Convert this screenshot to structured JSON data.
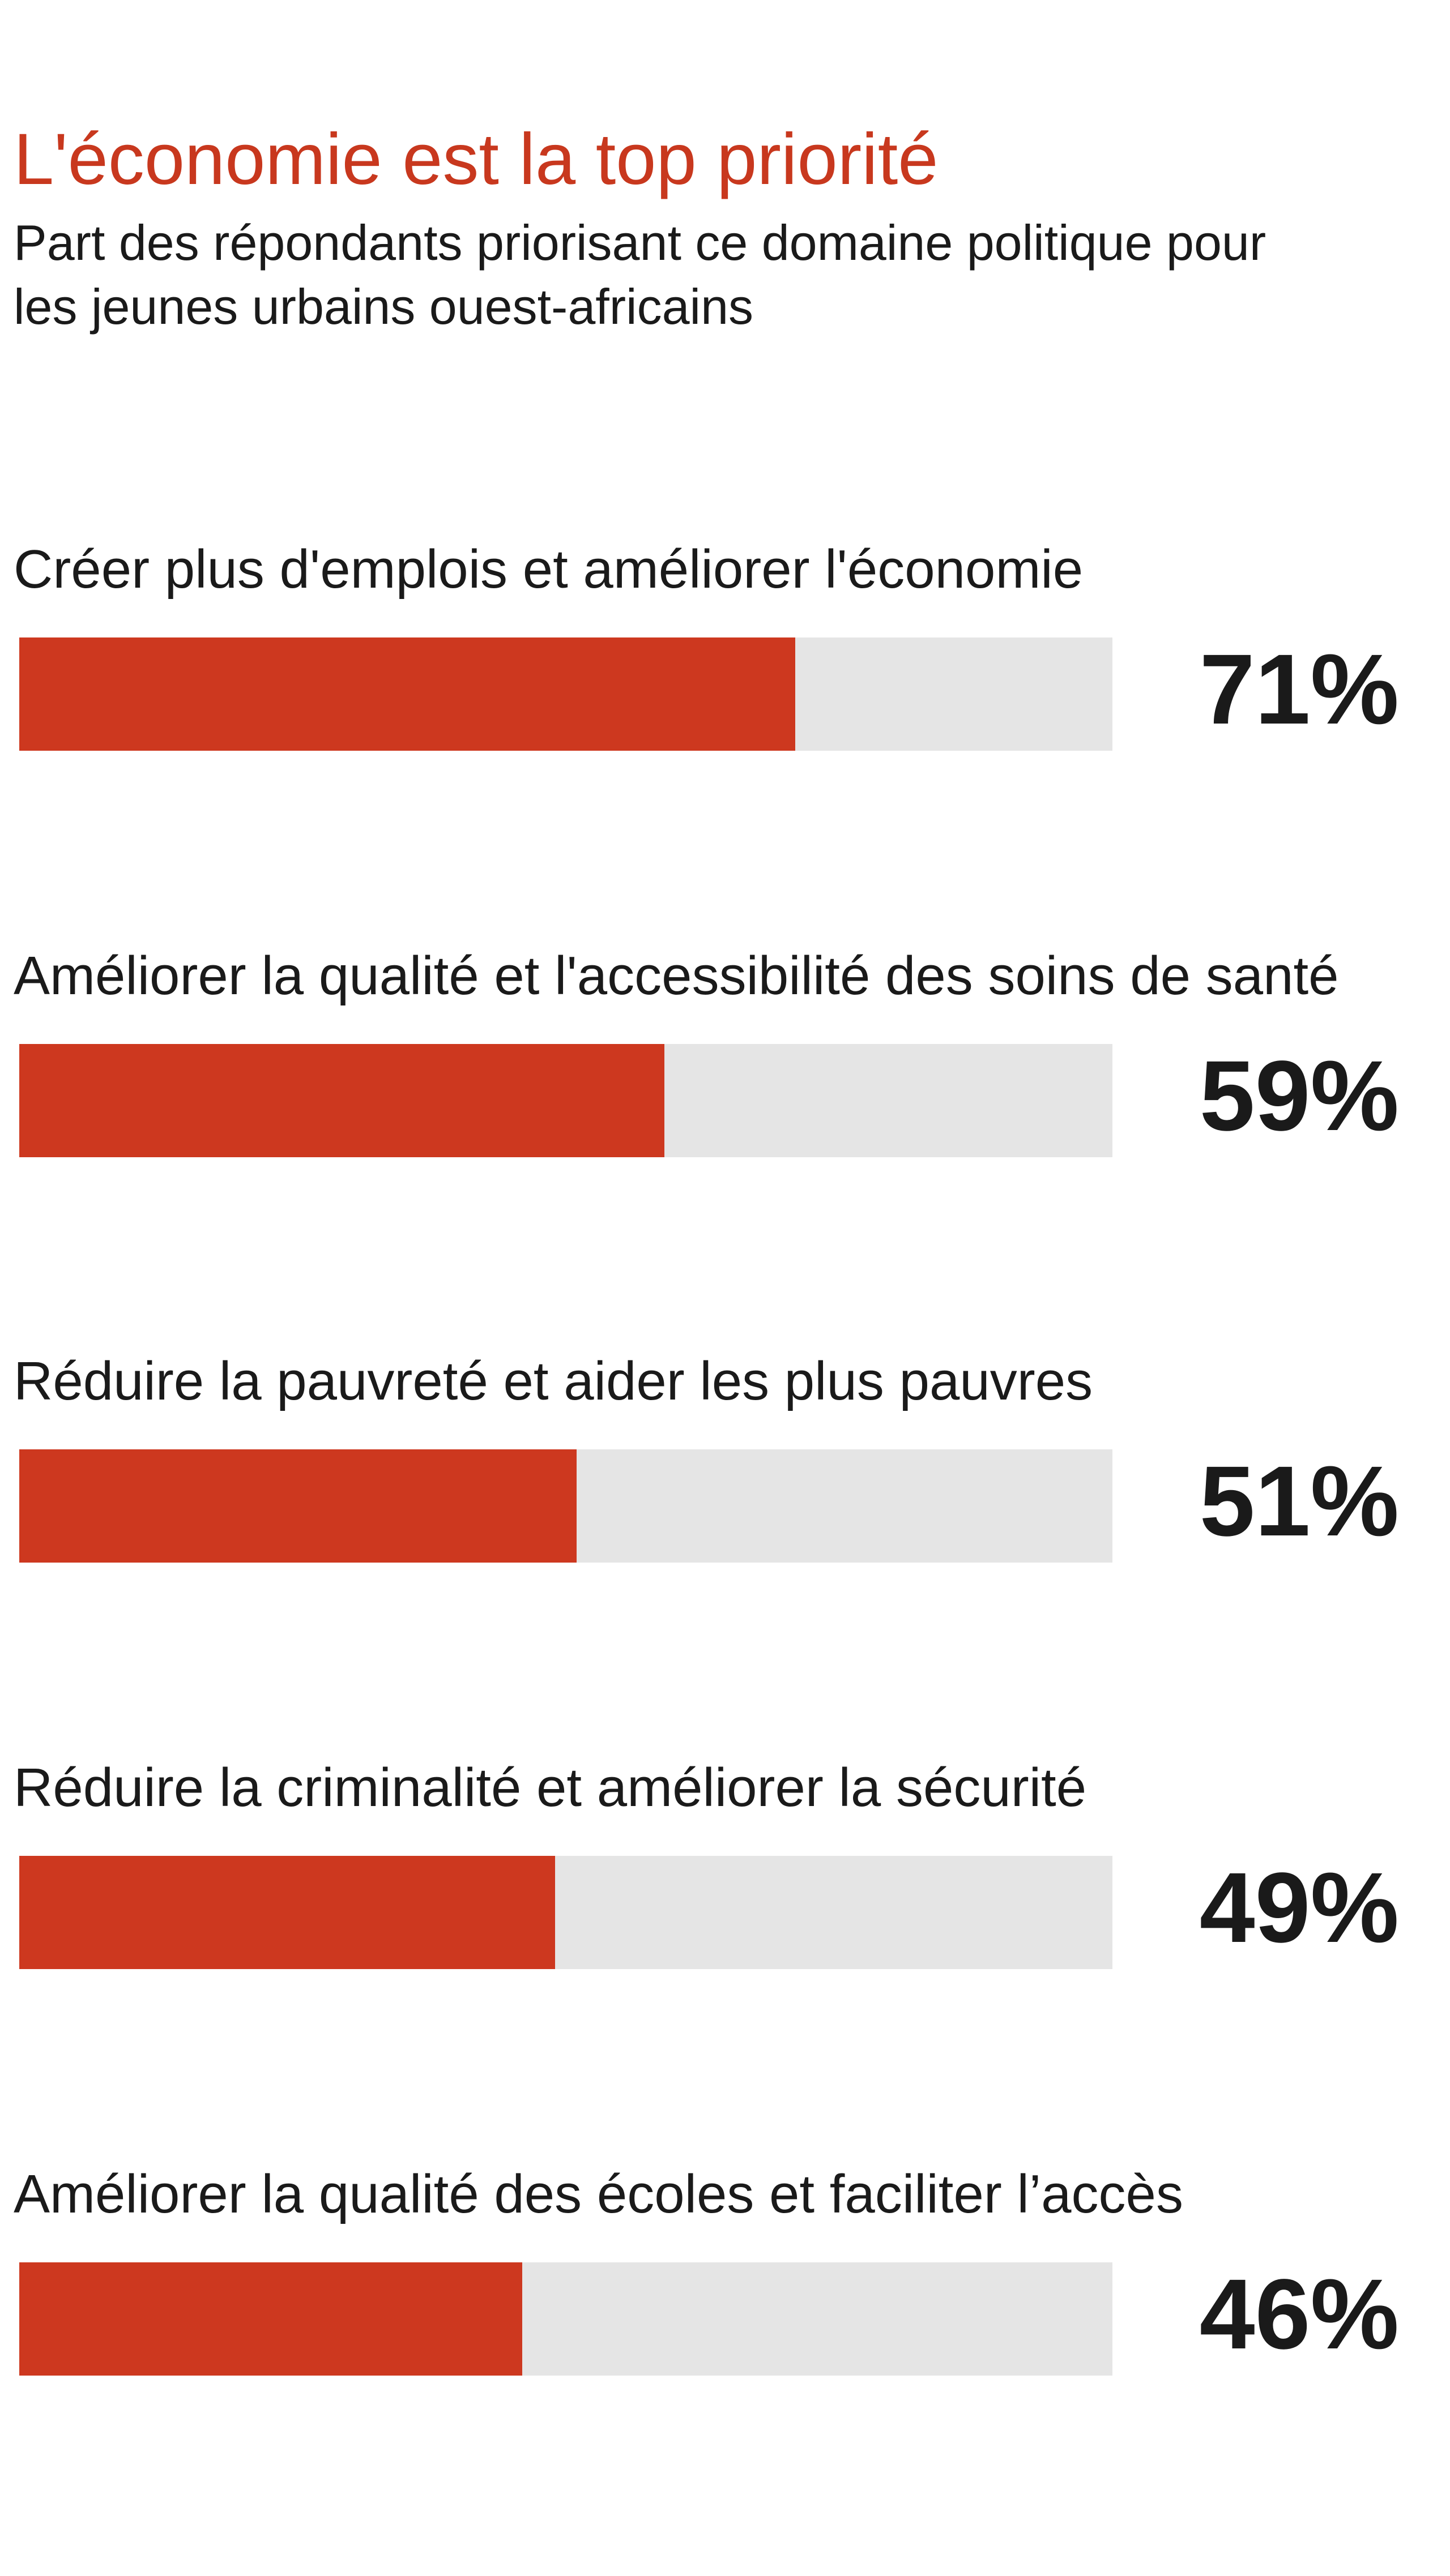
{
  "chart_data": {
    "type": "bar",
    "orientation": "horizontal",
    "title": "L'économie est la top priorité",
    "subtitle": "Part des répondants priorisant ce domaine politique pour les jeunes urbains ouest-africains",
    "xlim": [
      0,
      100
    ],
    "categories": [
      "Créer plus d'emplois et améliorer l'économie",
      "Améliorer la qualité et l'accessibilité des soins de santé",
      "Réduire la pauvreté et aider les plus pauvres",
      "Réduire la criminalité et améliorer la sécurité",
      "Améliorer la qualité des écoles et faciliter l’accès"
    ],
    "values": [
      71,
      59,
      51,
      49,
      46
    ],
    "value_labels": [
      "71%",
      "59%",
      "51%",
      "49%",
      "46%"
    ],
    "grid": false,
    "colors": {
      "title": "#c8381e",
      "bar": "#cd381f",
      "track": "#e5e5e5",
      "text": "#1a1a1a"
    }
  }
}
